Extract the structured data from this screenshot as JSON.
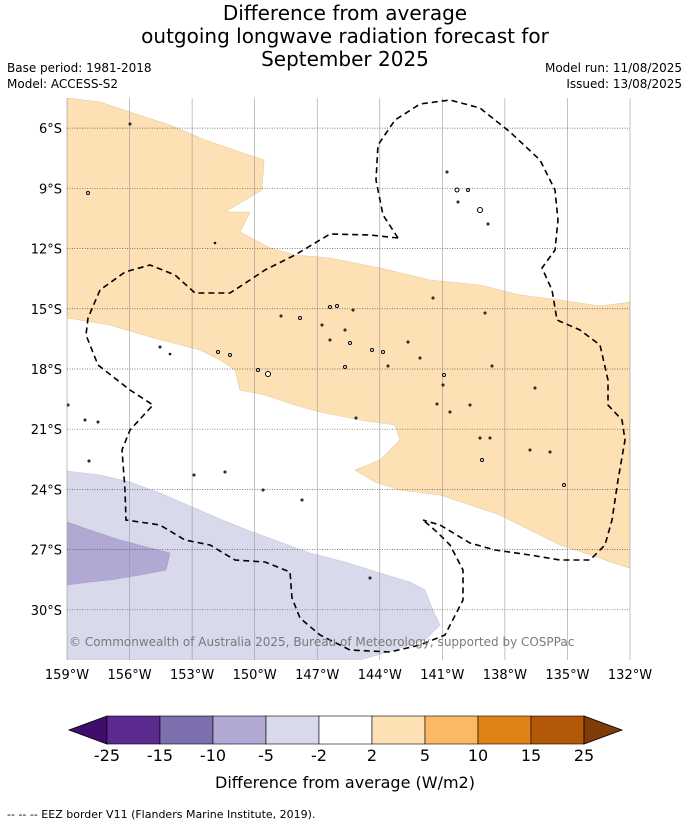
{
  "title": {
    "line1": "Difference from average",
    "line2": "outgoing longwave radiation forecast for",
    "line3": "September 2025"
  },
  "meta_left": {
    "base_period": "Base period: 1981-2018",
    "model": "Model: ACCESS-S2"
  },
  "meta_right": {
    "model_run": "Model run: 11/08/2025",
    "issued": "Issued: 13/08/2025"
  },
  "map": {
    "lon_range": [
      -159,
      -132
    ],
    "lat_range": [
      -32.5,
      -4.5
    ],
    "lon_ticks": [
      "159°W",
      "156°W",
      "153°W",
      "150°W",
      "147°W",
      "144°W",
      "141°W",
      "138°W",
      "135°W",
      "132°W"
    ],
    "lat_ticks": [
      "6°S",
      "9°S",
      "12°S",
      "15°S",
      "18°S",
      "21°S",
      "24°S",
      "27°S",
      "30°S"
    ],
    "grid": true,
    "copyright": "© Commonwealth of Australia 2025, Bureau of Meteorology, supported by COSPPac"
  },
  "colorbar": {
    "label": "Difference from average (W/m2)",
    "ticks": [
      "-25",
      "-15",
      "-10",
      "-5",
      "-2",
      "2",
      "5",
      "10",
      "15",
      "25"
    ],
    "colors": [
      "#3f0d6b",
      "#5b2a8e",
      "#7e6fae",
      "#b1a9d3",
      "#d8d9ea",
      "#ffffff",
      "#fde0b3",
      "#fdb863",
      "#e08214",
      "#b35806",
      "#7f3b08"
    ]
  },
  "footer": "-- -- -- EEZ border V11 (Flanders Marine Institute, 2019)."
}
